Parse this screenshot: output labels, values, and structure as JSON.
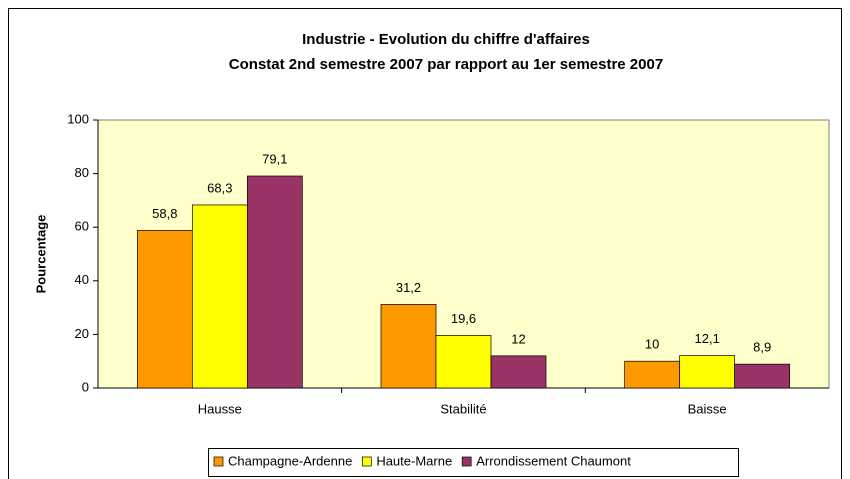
{
  "chart_data": {
    "type": "bar",
    "title": "Industrie - Evolution du chiffre d'affaires",
    "subtitle": "Constat 2nd semestre 2007 par rapport au 1er semestre 2007",
    "y_label": "Pourcentage",
    "categories": [
      "Hausse",
      "Stabilité",
      "Baisse"
    ],
    "series": [
      {
        "name": "Champagne-Ardenne",
        "color": "#ff9900",
        "values": [
          58.8,
          31.2,
          10
        ],
        "value_labels": [
          "58,8",
          "31,2",
          "10"
        ]
      },
      {
        "name": "Haute-Marne",
        "color": "#ffff00",
        "values": [
          68.3,
          19.6,
          12.1
        ],
        "value_labels": [
          "68,3",
          "19,6",
          "12,1"
        ]
      },
      {
        "name": "Arrondissement Chaumont",
        "color": "#993366",
        "values": [
          79.1,
          12,
          8.9
        ],
        "value_labels": [
          "79,1",
          "12",
          "8,9"
        ]
      }
    ],
    "ylim": [
      0,
      100
    ],
    "yticks": [
      0,
      20,
      40,
      60,
      80,
      100
    ],
    "plot_background": "#ffffcc",
    "legend": "bottom"
  }
}
